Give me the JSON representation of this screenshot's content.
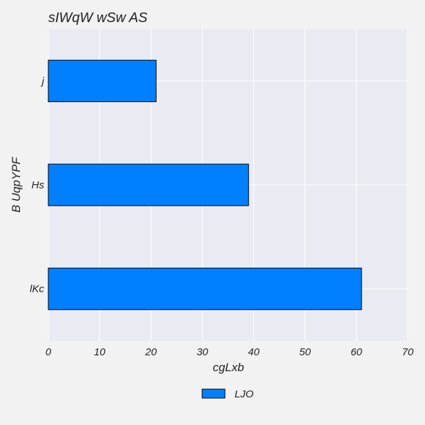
{
  "chart_data": {
    "type": "bar",
    "orientation": "horizontal",
    "title": "sIWqW wSw AS",
    "xlabel": "cgLxb",
    "ylabel": "B UqpYPF",
    "categories": [
      "lKc",
      "Hs",
      "j"
    ],
    "series": [
      {
        "name": "LJO",
        "values": [
          61,
          39,
          21
        ],
        "color": "#0080ff"
      }
    ],
    "xlim": [
      0,
      70
    ],
    "xticks": [
      0,
      10,
      20,
      30,
      40,
      50,
      60,
      70
    ],
    "grid": true,
    "legend_position": "bottom-center"
  }
}
